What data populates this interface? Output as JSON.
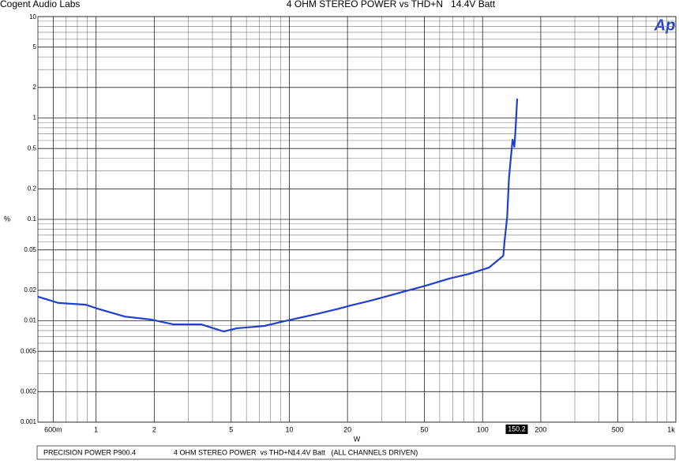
{
  "chart_data": {
    "type": "line",
    "log_x": true,
    "log_y": true,
    "header": "Cogent Audio Labs",
    "title": "4 OHM STEREO POWER vs THD+N   14.4V Batt",
    "logo": "Ap",
    "xlabel": "W",
    "ylabel": "%",
    "color": "#1f3fcf",
    "x": [
      0.5,
      0.637,
      0.885,
      1.04,
      1.41,
      1.91,
      2.53,
      3.51,
      4.57,
      5.36,
      6.78,
      7.44,
      8.98,
      10.8,
      13.7,
      18.1,
      20.9,
      26.4,
      38.4,
      50.9,
      67.4,
      85.3,
      108,
      124,
      128,
      130,
      134,
      137,
      140,
      143,
      146,
      148,
      151
    ],
    "values": [
      0.0173,
      0.015,
      0.0144,
      0.013,
      0.011,
      0.0103,
      0.0092,
      0.0092,
      0.00785,
      0.00844,
      0.00875,
      0.0089,
      0.0097,
      0.0105,
      0.0116,
      0.0132,
      0.0142,
      0.0158,
      0.0192,
      0.0222,
      0.0261,
      0.029,
      0.0335,
      0.0416,
      0.0438,
      0.0617,
      0.105,
      0.258,
      0.404,
      0.611,
      0.52,
      0.757,
      1.55
    ],
    "xlim": [
      0.5,
      1000
    ],
    "ylim": [
      0.001,
      10
    ],
    "xticks": [
      {
        "value": 0.6,
        "label": "600m"
      },
      1,
      2,
      5,
      10,
      20,
      50,
      100,
      200,
      500,
      {
        "value": 1000,
        "label": "1k"
      }
    ],
    "yticks": [
      10,
      5,
      2,
      1,
      0.5,
      0.2,
      0.1,
      0.05,
      0.02,
      0.01,
      0.005,
      0.002,
      0.001
    ],
    "xminor": [
      0.7,
      0.8,
      0.9,
      3,
      4,
      6,
      7,
      8,
      9,
      30,
      40,
      60,
      70,
      80,
      90,
      300,
      400,
      600,
      700,
      800,
      900
    ],
    "yminor": [
      0.003,
      0.004,
      0.006,
      0.007,
      0.008,
      0.009,
      0.03,
      0.04,
      0.06,
      0.07,
      0.08,
      0.09,
      0.3,
      0.4,
      0.6,
      0.7,
      0.8,
      0.9,
      3,
      4,
      6,
      7,
      8,
      9
    ],
    "grid": true,
    "cursor": 150.2,
    "footer": [
      "PRECISION POWER P900.4",
      "4 OHM STEREO POWER  vs THD+N",
      "14.4V Batt   (ALL CHANNELS DRIVEN)"
    ]
  }
}
